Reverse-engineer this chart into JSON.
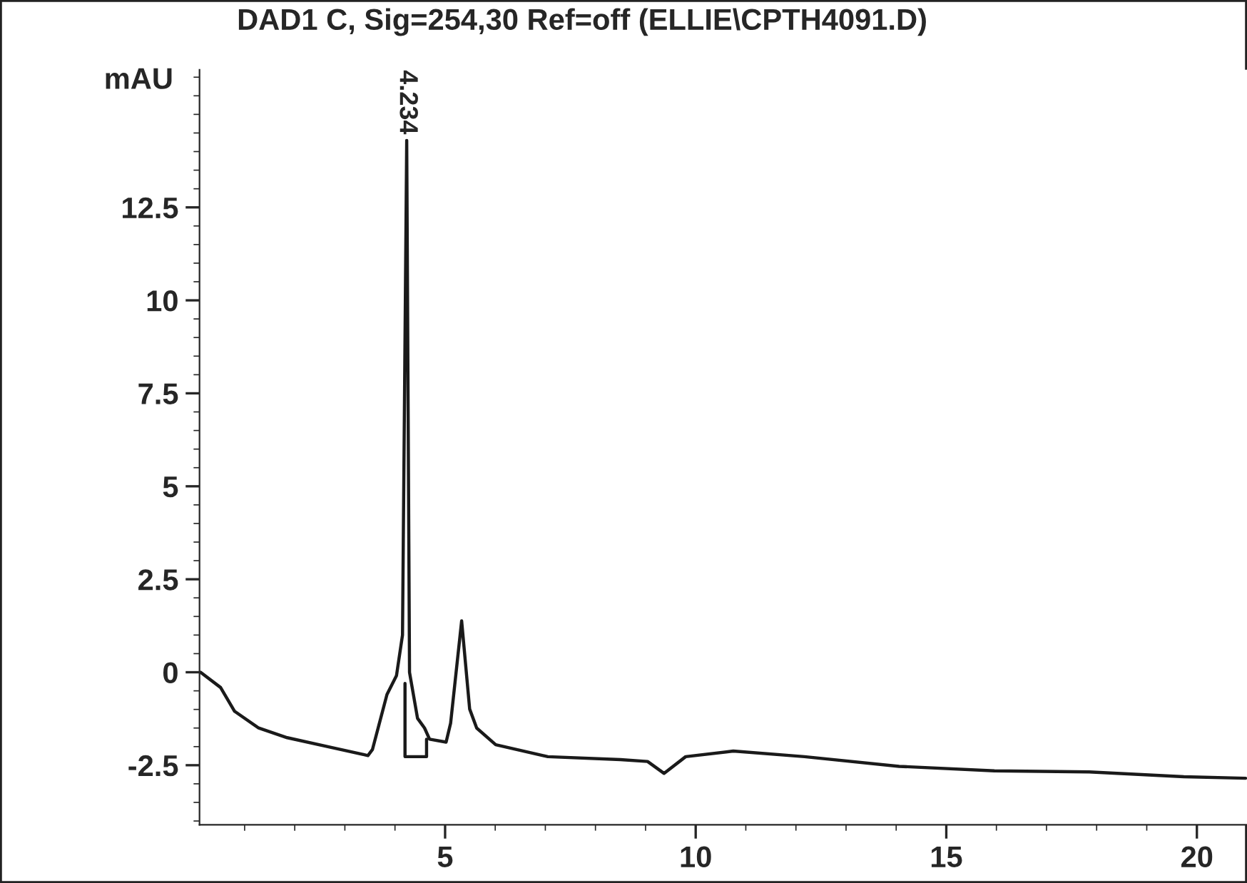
{
  "chart_data": {
    "type": "line",
    "title": "DAD1 C, Sig=254,30 Ref=off (ELLIE\\CPTH4091.D)",
    "ylabel": "mAU",
    "series": [
      {
        "color": "#1a1a1a",
        "x": [
          0.12,
          0.52,
          0.8,
          1.28,
          1.85,
          2.79,
          3.46,
          3.55,
          3.84,
          4.03,
          4.15,
          4.234,
          4.29,
          4.45,
          4.59,
          4.69,
          5.02,
          5.11,
          5.33,
          5.49,
          5.63,
          6.01,
          7.05,
          8.5,
          9.04,
          9.37,
          9.8,
          10.75,
          12.17,
          14.06,
          15.96,
          17.85,
          19.74,
          20.97
        ],
        "values": [
          0.0,
          -0.41,
          -1.05,
          -1.5,
          -1.76,
          -2.04,
          -2.24,
          -2.08,
          -0.6,
          -0.09,
          1.0,
          14.3,
          0.0,
          -1.24,
          -1.5,
          -1.8,
          -1.88,
          -1.37,
          1.38,
          -0.99,
          -1.5,
          -1.95,
          -2.27,
          -2.35,
          -2.4,
          -2.72,
          -2.27,
          -2.12,
          -2.27,
          -2.53,
          -2.65,
          -2.68,
          -2.81,
          -2.85
        ]
      },
      {
        "color": "#1a1a1a",
        "x": [
          4.2,
          4.2,
          4.63,
          4.63
        ],
        "values": [
          -0.3,
          -2.27,
          -2.27,
          -1.8
        ]
      }
    ],
    "annotations": [
      {
        "text": "4.234",
        "x": 4.234,
        "y": 14.3
      }
    ],
    "xlim": [
      0.1,
      21.0
    ],
    "ylim": [
      -4.1,
      16.2
    ],
    "xticks": [
      5,
      10,
      15,
      20
    ],
    "yticks": [
      -2.5,
      0,
      2.5,
      5,
      7.5,
      10,
      12.5
    ],
    "grid": false,
    "legend": false,
    "marker": "none",
    "line_style": "solid"
  }
}
